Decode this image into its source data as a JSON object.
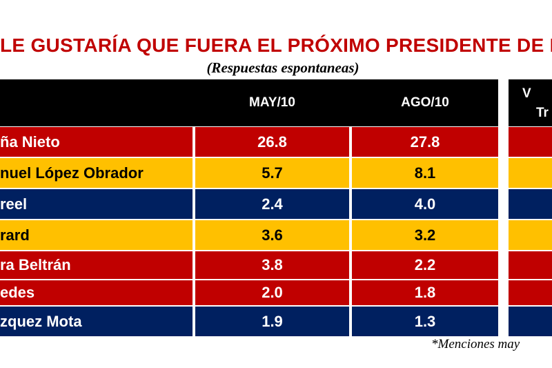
{
  "chart_data": {
    "type": "table",
    "title": "LE GUSTARÍA QUE FUERA EL PRÓXIMO PRESIDENTE DE ME",
    "subtitle": "(Respuestas espontaneas)",
    "columns": [
      "",
      "MAY/10",
      "AGO/10"
    ],
    "partial_header": [
      "V",
      "Tr"
    ],
    "rows": [
      {
        "name": "ña Nieto",
        "may": "26.8",
        "ago": "27.8",
        "color": "#c00000",
        "text_color": "#ffffff"
      },
      {
        "name": "nuel López Obrador",
        "may": "5.7",
        "ago": "8.1",
        "color": "#ffc000",
        "text_color": "#000000"
      },
      {
        "name": "reel",
        "may": "2.4",
        "ago": "4.0",
        "color": "#002060",
        "text_color": "#ffffff"
      },
      {
        "name": "rard",
        "may": "3.6",
        "ago": "3.2",
        "color": "#ffc000",
        "text_color": "#000000"
      },
      {
        "name": "ra Beltrán",
        "may": "3.8",
        "ago": "2.2",
        "color": "#c00000",
        "text_color": "#ffffff"
      },
      {
        "name": "edes",
        "may": "2.0",
        "ago": "1.8",
        "color": "#c00000",
        "text_color": "#ffffff"
      },
      {
        "name": "zquez Mota",
        "may": "1.9",
        "ago": "1.3",
        "color": "#002060",
        "text_color": "#ffffff"
      }
    ],
    "footnote": "*Menciones may"
  }
}
